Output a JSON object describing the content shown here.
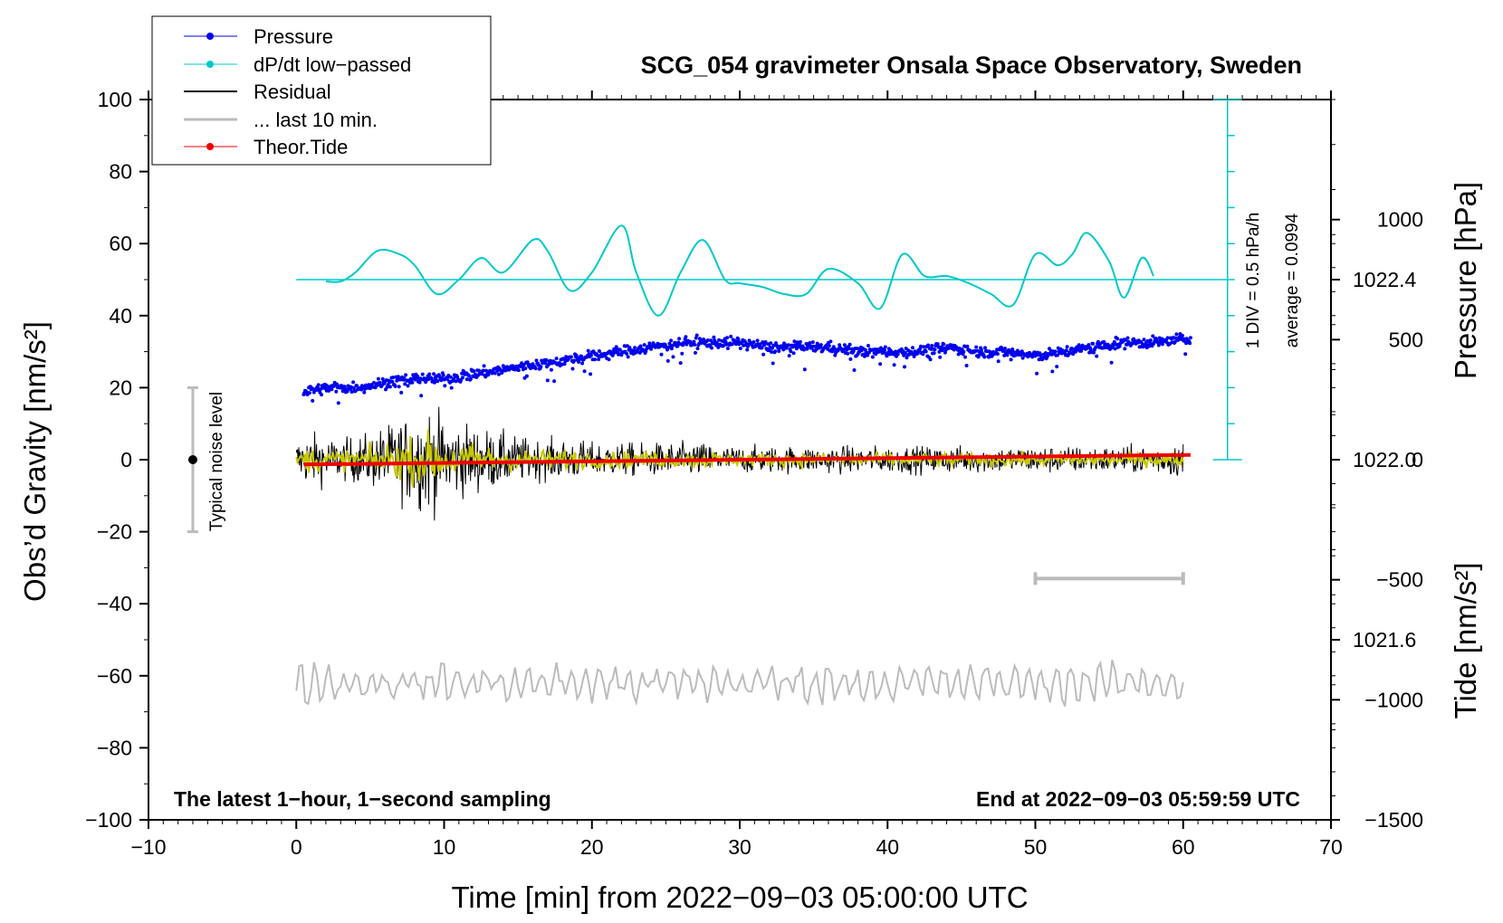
{
  "chart_data": {
    "type": "line",
    "title": "SCG_054 gravimeter Onsala Space Observatory, Sweden",
    "xlabel": "Time [min] from 2022−09−03 05:00:00 UTC",
    "ylabel_left": "Obs’d Gravity [nm/s²]",
    "ylabel_right_top": "Pressure [hPa]",
    "ylabel_right_bottom": "Tide [nm/s²]",
    "xlim": [
      -10,
      70
    ],
    "ylim": [
      -100,
      100
    ],
    "pressure_lim": [
      1021.2,
      1022.8
    ],
    "tide_lim": [
      -1500,
      1500
    ],
    "x_ticks": [
      -10,
      0,
      10,
      20,
      30,
      40,
      50,
      60,
      70
    ],
    "x_tick_labels": [
      "−10",
      "0",
      "10",
      "20",
      "30",
      "40",
      "50",
      "60",
      "70"
    ],
    "y_ticks": [
      100,
      80,
      60,
      40,
      20,
      0,
      -20,
      -40,
      -60,
      -80,
      -100
    ],
    "y_tick_labels": [
      "100",
      "80",
      "60",
      "40",
      "20",
      "0",
      "−20",
      "−40",
      "−60",
      "−80",
      "−100"
    ],
    "pressure_ticks": [
      1022.4,
      1022.0,
      1021.6
    ],
    "pressure_tick_labels": [
      "1022.4",
      "1022.0",
      "1021.6"
    ],
    "tide_ticks": [
      1000,
      500,
      0,
      -500,
      -1000,
      -1500
    ],
    "tide_tick_labels": [
      "1000",
      "500",
      "0",
      "−500",
      "−1000",
      "−1500"
    ],
    "legend": {
      "position": "top-left",
      "entries": [
        {
          "label": "Pressure",
          "color": "#0000ee",
          "marker": "dot"
        },
        {
          "label": "dP/dt low−passed",
          "color": "#00c8c8",
          "marker": "dot"
        },
        {
          "label": "Residual",
          "color": "#000000",
          "marker": "none"
        },
        {
          "label": "... last 10 min.",
          "color": "#bbbbbb",
          "marker": "none"
        },
        {
          "label": "Theor.Tide",
          "color": "#ee0000",
          "marker": "dot"
        }
      ]
    },
    "annotations": {
      "bottom_left": "The latest 1−hour, 1−second sampling",
      "bottom_right": "End at 2022−09−03 05:59:59 UTC",
      "noise_label": "Typical noise level",
      "noise_bar": {
        "x": -7,
        "center": 0,
        "half_range": 20
      },
      "dpdt_scale_text": "1 DIV = 0.5 hPa/h",
      "dpdt_average_text": "average = 0.0994",
      "dpdt_scale_axis": {
        "x": 63,
        "from": 0,
        "to": 100
      },
      "last10_bar": {
        "x_from": 50,
        "x_to": 60,
        "y": -33
      }
    },
    "series": [
      {
        "name": "Pressure",
        "color": "#0000ee",
        "axis": "pressure",
        "x": [
          0.5,
          2,
          4,
          6,
          8,
          10,
          12,
          14,
          16,
          18,
          20,
          22,
          24,
          26,
          28,
          30,
          32,
          34,
          36,
          38,
          40,
          42,
          44,
          46,
          48,
          50,
          52,
          54,
          56,
          58,
          60.5
        ],
        "values": [
          1022.15,
          1022.16,
          1022.16,
          1022.17,
          1022.18,
          1022.18,
          1022.19,
          1022.2,
          1022.21,
          1022.22,
          1022.23,
          1022.24,
          1022.25,
          1022.26,
          1022.26,
          1022.26,
          1022.25,
          1022.25,
          1022.25,
          1022.24,
          1022.24,
          1022.24,
          1022.25,
          1022.24,
          1022.24,
          1022.23,
          1022.24,
          1022.25,
          1022.26,
          1022.26,
          1022.27
        ]
      },
      {
        "name": "dP/dt low−passed",
        "color": "#00c8c8",
        "axis": "left",
        "x": [
          2,
          3,
          4,
          5.5,
          7,
          8,
          9.5,
          11,
          12.5,
          14,
          16,
          17,
          18.5,
          20,
          22,
          23,
          24.5,
          26,
          27.5,
          29,
          30,
          31.5,
          33,
          34.5,
          36,
          38,
          39.5,
          41,
          42.5,
          44,
          45.5,
          47,
          48.5,
          50,
          51.5,
          52.5,
          53.5,
          55,
          56,
          57.2,
          58
        ],
        "values": [
          49.5,
          49.5,
          52,
          58,
          57,
          54,
          46,
          50,
          56,
          52,
          61,
          58,
          47,
          52,
          65,
          52,
          40,
          52,
          61,
          50,
          49,
          48,
          46,
          46,
          53,
          49,
          42,
          57,
          51,
          51,
          49,
          46,
          43,
          57,
          54,
          57,
          63,
          55,
          45,
          56,
          51
        ]
      },
      {
        "name": "Residual",
        "color": "#000000",
        "axis": "left",
        "x": [
          0,
          1,
          2,
          3,
          4,
          5,
          6,
          7,
          8,
          9,
          10,
          11,
          12,
          13,
          14,
          15,
          16,
          17,
          18,
          19,
          20,
          21,
          22,
          23,
          24,
          25,
          26,
          27,
          28,
          29,
          30,
          31,
          32,
          33,
          34,
          35,
          36,
          37,
          38,
          39,
          40,
          41,
          42,
          43,
          44,
          45,
          46,
          47,
          48,
          49,
          50,
          51,
          52,
          53,
          54,
          55,
          56,
          57,
          58,
          59,
          60
        ],
        "values": [
          6,
          8,
          7,
          6,
          7,
          8,
          10,
          12,
          14,
          16,
          12,
          11,
          10,
          9,
          8,
          7,
          6,
          6,
          6,
          6,
          5,
          5,
          5,
          5,
          5,
          5,
          5,
          5,
          5,
          4,
          4,
          4,
          4,
          4,
          4,
          4,
          4,
          4,
          4,
          4,
          4,
          4,
          4,
          4,
          4,
          4,
          4,
          4,
          4,
          4,
          4,
          4,
          4,
          4,
          4,
          4,
          4,
          4,
          4,
          5,
          5
        ]
      },
      {
        "name": "Residual low−passed",
        "color": "#c8c800",
        "axis": "left",
        "x": [
          0,
          10,
          20,
          30,
          40,
          50,
          60
        ],
        "values": [
          0,
          0,
          0,
          0,
          0,
          0,
          0
        ]
      },
      {
        "name": "... last 10 min.",
        "color": "#bbbbbb",
        "axis": "left",
        "x": [
          0,
          10,
          20,
          30,
          40,
          50,
          60
        ],
        "values": [
          -62,
          -62,
          -62,
          -62,
          -62,
          -62,
          -62
        ]
      },
      {
        "name": "Theor.Tide",
        "color": "#ee0000",
        "axis": "tide",
        "x": [
          0.5,
          60.5
        ],
        "values": [
          -20,
          20
        ]
      }
    ]
  }
}
